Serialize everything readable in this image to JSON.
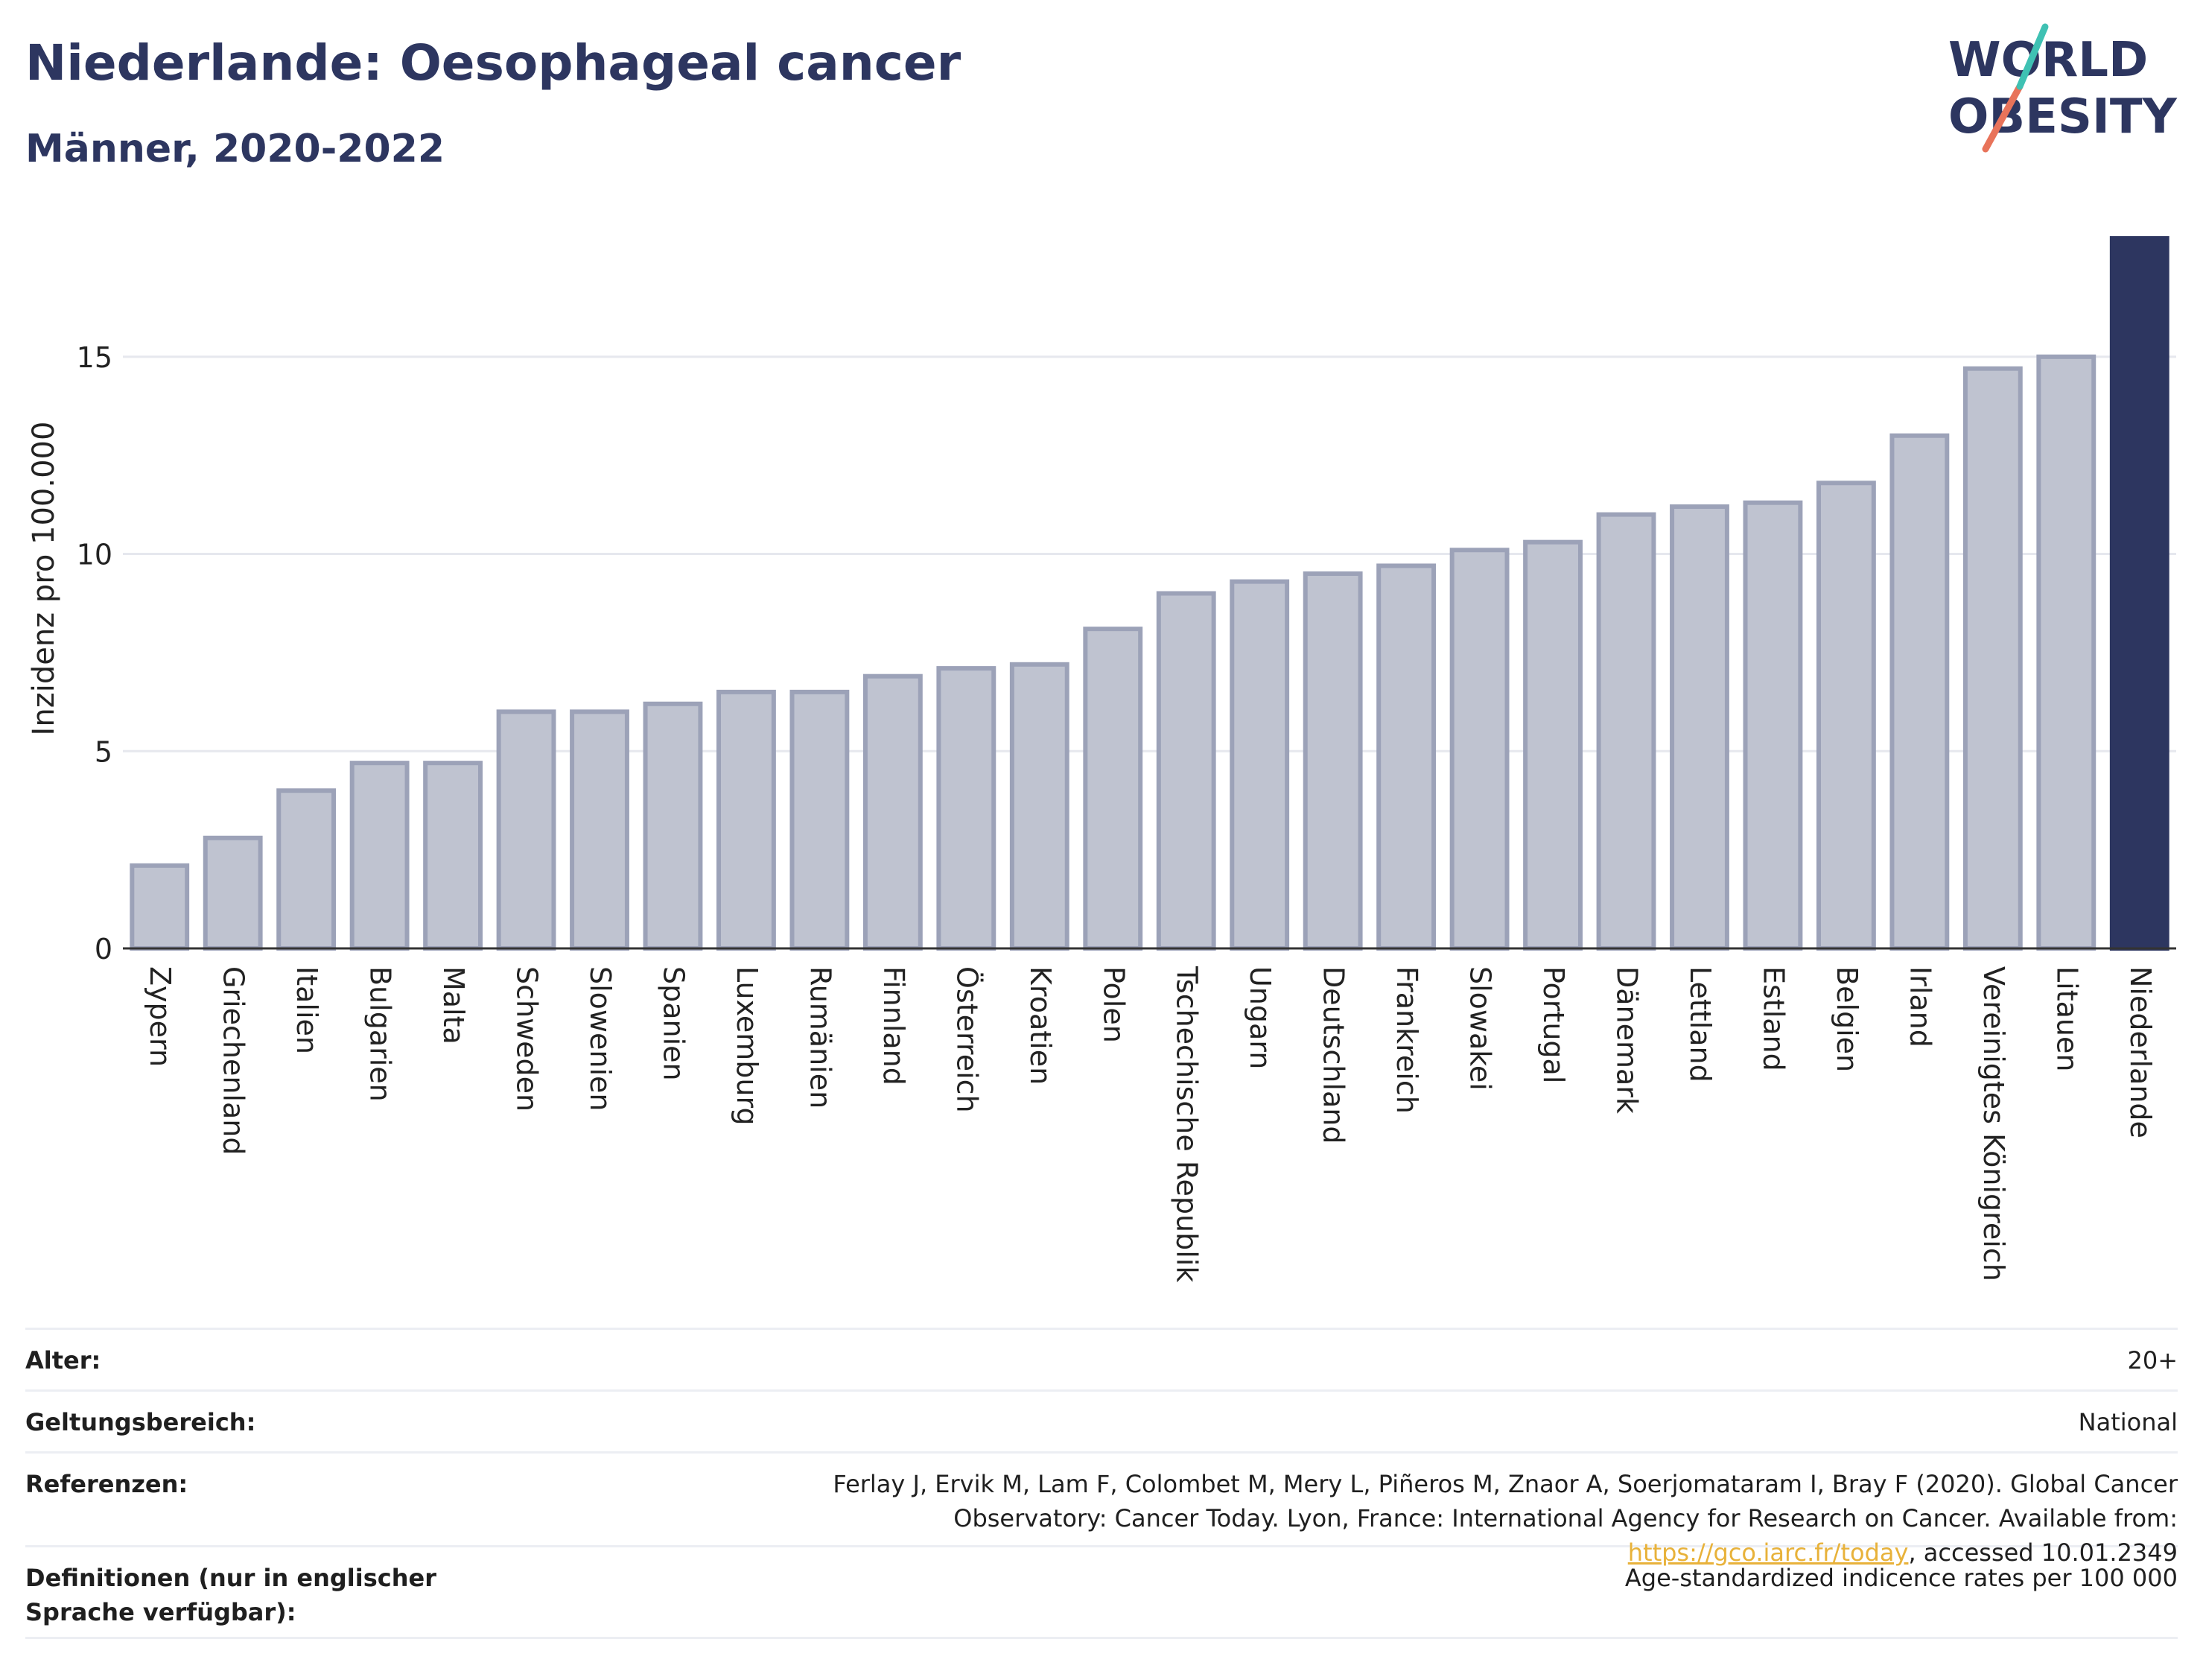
{
  "header": {
    "title": "Niederlande: Oesophageal cancer",
    "subtitle": "Männer, 2020-2022"
  },
  "logo": {
    "line1": "WORLD",
    "line2": "OBESITY"
  },
  "chart_data": {
    "type": "bar",
    "ylabel": "Inzidenz pro 100.000",
    "xlabel": "",
    "ylim": [
      0,
      18
    ],
    "yticks": [
      0,
      5,
      10,
      15
    ],
    "grid": true,
    "highlight": "Niederlande",
    "categories": [
      "Zypern",
      "Griechenland",
      "Italien",
      "Bulgarien",
      "Malta",
      "Schweden",
      "Slowenien",
      "Spanien",
      "Luxemburg",
      "Rumänien",
      "Finnland",
      "Österreich",
      "Kroatien",
      "Polen",
      "Tschechische Republik",
      "Ungarn",
      "Deutschland",
      "Frankreich",
      "Slowakei",
      "Portugal",
      "Dänemark",
      "Lettland",
      "Estland",
      "Belgien",
      "Irland",
      "Vereinigtes Königreich",
      "Litauen",
      "Niederlande"
    ],
    "values": [
      2.1,
      2.8,
      4.0,
      4.7,
      4.7,
      6.0,
      6.0,
      6.2,
      6.5,
      6.5,
      6.9,
      7.1,
      7.2,
      8.1,
      9.0,
      9.3,
      9.5,
      9.7,
      10.1,
      10.3,
      11.0,
      11.2,
      11.3,
      11.8,
      13.0,
      14.7,
      15.0,
      18.0
    ],
    "colors": {
      "bar": "#bfc3d0",
      "bar_border": "#9ca2b8",
      "highlight": "#2d3660"
    }
  },
  "meta": {
    "rows": [
      {
        "label": "Alter:",
        "value": "20+"
      },
      {
        "label": "Geltungsbereich:",
        "value": "National"
      },
      {
        "label": "Referenzen:",
        "value_pre": "Ferlay J, Ervik M, Lam F, Colombet M, Mery L, Piñeros M, Znaor A, Soerjomataram I, Bray F (2020). Global Cancer Observatory: Cancer Today. Lyon, France: International Agency for Research on Cancer. Available from: ",
        "link": "https://gco.iarc.fr/today",
        "value_post": ", accessed 10.01.2349"
      },
      {
        "label": "Definitionen (nur in englischer Sprache verfügbar):",
        "value": "Age-standardized indicence rates per 100 000"
      }
    ]
  }
}
